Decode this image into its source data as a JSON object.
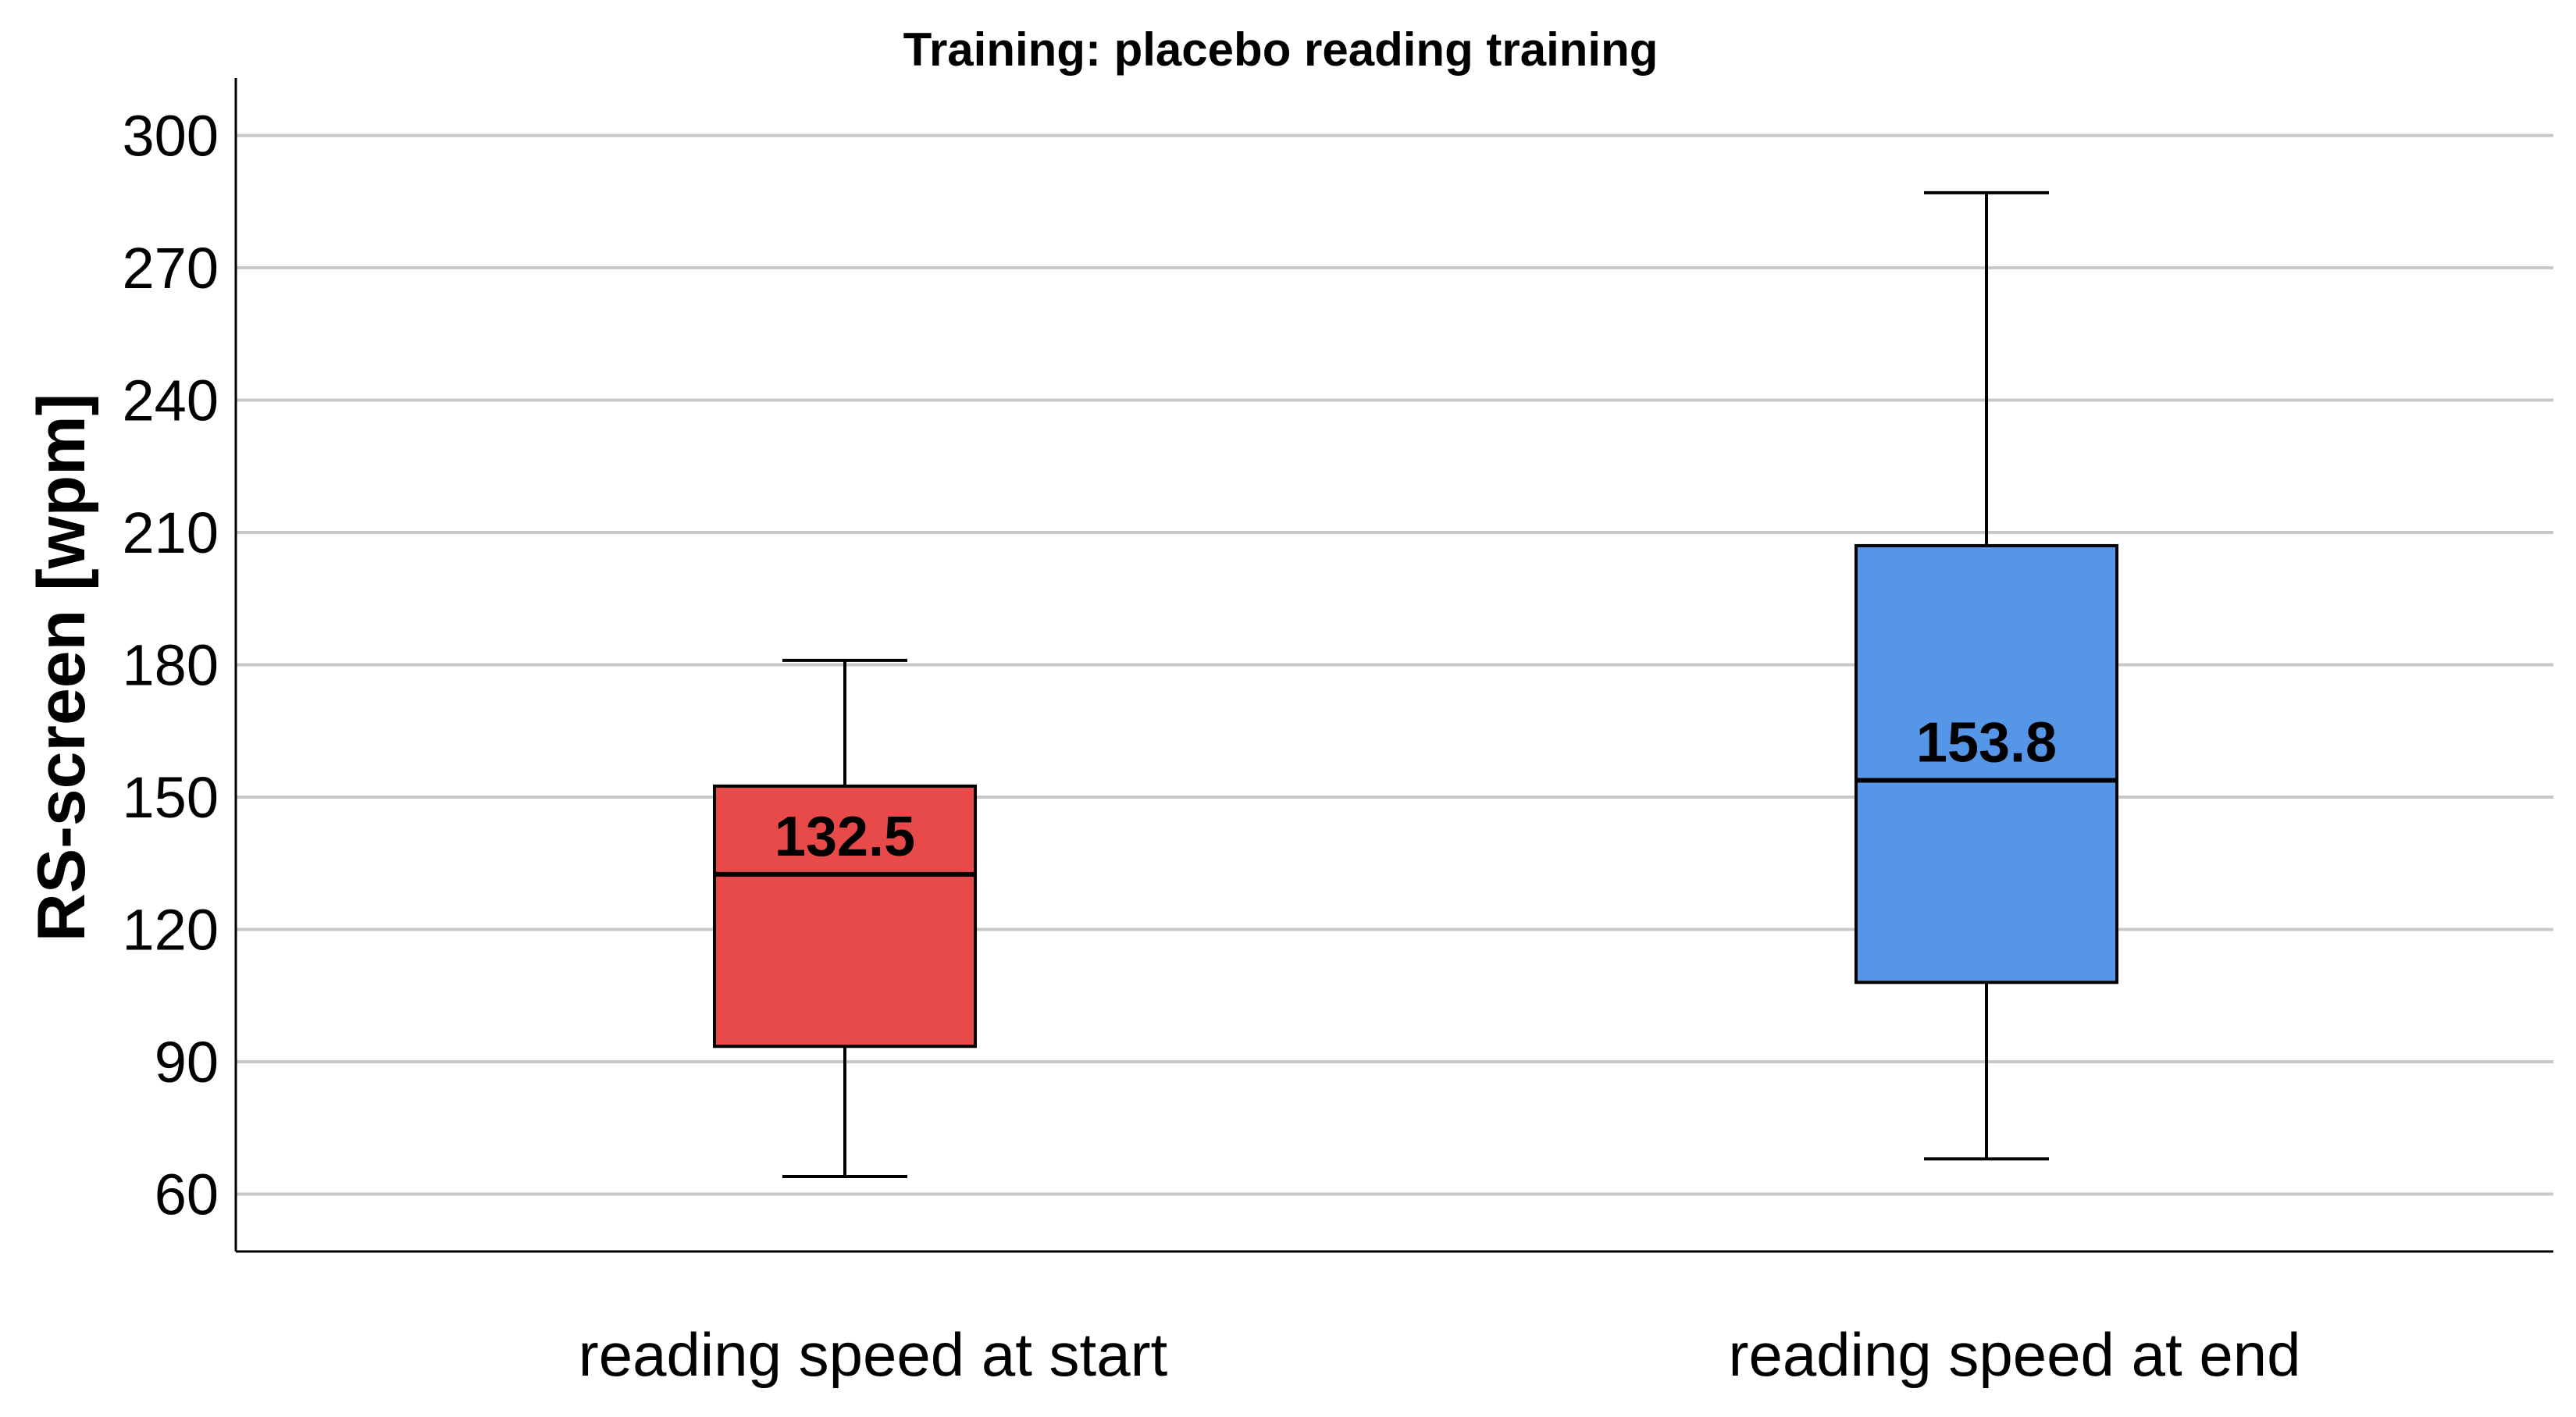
{
  "chart_data": {
    "type": "box",
    "title": "Training: placebo reading training",
    "ylabel": "RS-screen [wpm]",
    "xlabel": "",
    "ylim": [
      47,
      313
    ],
    "yticks": [
      60,
      90,
      120,
      150,
      180,
      210,
      240,
      270,
      300
    ],
    "grid": true,
    "categories": [
      "reading speed at start",
      "reading speed at end"
    ],
    "boxes": [
      {
        "category": "reading speed at start",
        "min": 64,
        "q1": 93.5,
        "median": 132.5,
        "q3": 152.5,
        "max": 181,
        "median_label": "132.5",
        "color": "#e84a4a"
      },
      {
        "category": "reading speed at end",
        "min": 68,
        "q1": 108,
        "median": 153.8,
        "q3": 207,
        "max": 287,
        "median_label": "153.8",
        "color": "#5596e6"
      }
    ]
  }
}
